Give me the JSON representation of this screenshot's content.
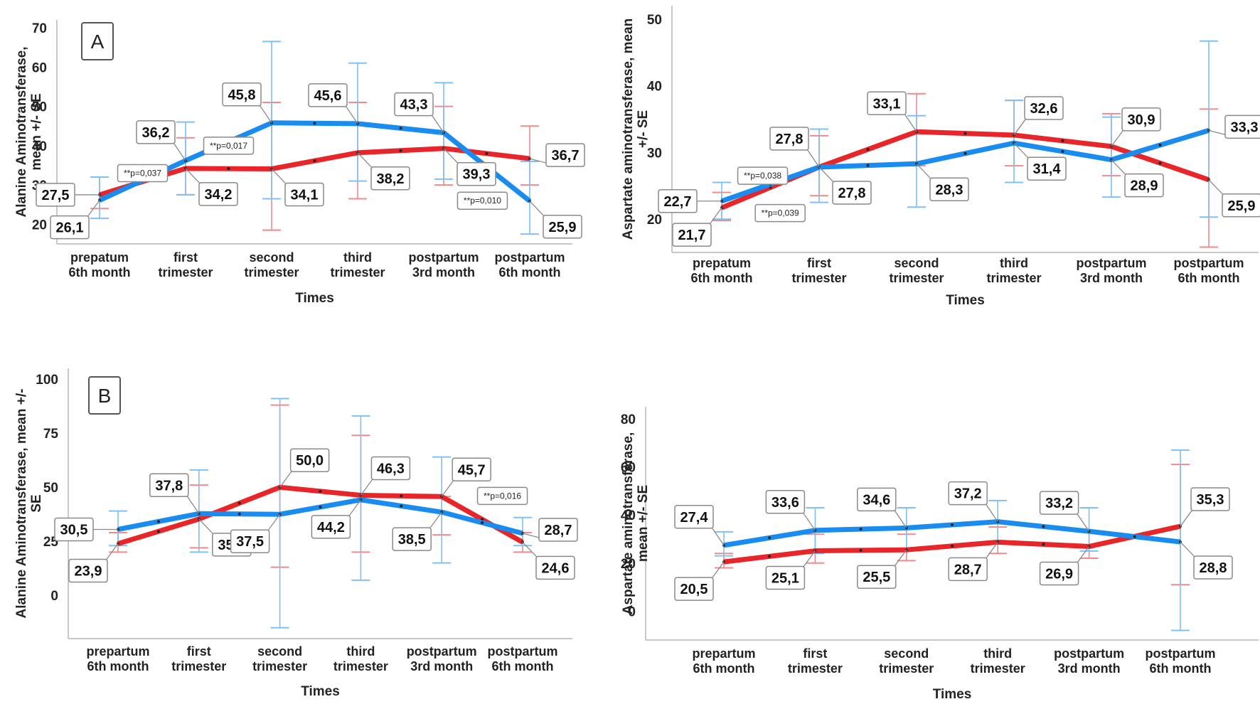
{
  "chart_data": [
    {
      "id": "A-ALT",
      "type": "line",
      "panel_letter": "A",
      "title": "",
      "xlabel": "Times",
      "ylabel": "Alanine Aminotransferase, mean +/- SE",
      "categories": [
        "prepatum\n6th month",
        "first\ntrimester",
        "second\ntrimester",
        "third\ntrimester",
        "postpartum\n3rd month",
        "postpartum\n6th month"
      ],
      "ylim": [
        15,
        72
      ],
      "yticks": [
        20,
        30,
        40,
        50,
        60,
        70
      ],
      "series": [
        {
          "name": "red",
          "color": "#e8262a",
          "values": [
            27.5,
            34.2,
            34.1,
            38.2,
            39.3,
            36.7
          ],
          "err_low": [
            24,
            27.5,
            18.5,
            26.5,
            30,
            30
          ],
          "err_high": [
            32,
            42,
            51,
            51,
            50,
            45
          ]
        },
        {
          "name": "blue",
          "color": "#1a8cf0",
          "values": [
            26.1,
            36.2,
            45.8,
            45.6,
            43.3,
            25.9
          ],
          "err_low": [
            21.5,
            27.5,
            26.5,
            31,
            31.5,
            17.5
          ],
          "err_high": [
            32,
            46,
            66.5,
            61,
            56,
            36
          ]
        }
      ],
      "labels": [
        {
          "text": "27,5",
          "series": 0,
          "index": 0,
          "pos": "left"
        },
        {
          "text": "26,1",
          "series": 1,
          "index": 0,
          "pos": "below-left"
        },
        {
          "text": "36,2",
          "series": 1,
          "index": 1,
          "pos": "above-left"
        },
        {
          "text": "34,2",
          "series": 0,
          "index": 1,
          "pos": "below-right"
        },
        {
          "text": "45,8",
          "series": 1,
          "index": 2,
          "pos": "above-left"
        },
        {
          "text": "34,1",
          "series": 0,
          "index": 2,
          "pos": "below-right"
        },
        {
          "text": "45,6",
          "series": 1,
          "index": 3,
          "pos": "above-left"
        },
        {
          "text": "38,2",
          "series": 0,
          "index": 3,
          "pos": "below-right"
        },
        {
          "text": "43,3",
          "series": 1,
          "index": 4,
          "pos": "above-left"
        },
        {
          "text": "39,3",
          "series": 0,
          "index": 4,
          "pos": "below-right"
        },
        {
          "text": "36,7",
          "series": 0,
          "index": 5,
          "pos": "right"
        },
        {
          "text": "25,9",
          "series": 1,
          "index": 5,
          "pos": "below-right"
        }
      ],
      "annotations": [
        {
          "text": "**p=0,037",
          "x": 0.5,
          "y": 33
        },
        {
          "text": "**p=0,017",
          "x": 1.5,
          "y": 40
        },
        {
          "text": "**p=0,010",
          "x": 4.45,
          "y": 26
        }
      ]
    },
    {
      "id": "A-AST",
      "type": "line",
      "panel_letter": "",
      "title": "",
      "xlabel": "Times",
      "ylabel": "Aspartate aminotransferase, mean +/- SE",
      "categories": [
        "prepatum\n6th month",
        "first\ntrimester",
        "second\ntrimester",
        "third\ntrimester",
        "postpartum\n3rd month",
        "postpartum\n6th month"
      ],
      "ylim": [
        15,
        52
      ],
      "yticks": [
        20,
        30,
        40,
        50
      ],
      "series": [
        {
          "name": "red",
          "color": "#e8262a",
          "values": [
            21.7,
            27.8,
            33.1,
            32.6,
            30.9,
            25.9
          ],
          "err_low": [
            19.8,
            23.5,
            28.0,
            28.0,
            26.5,
            15.8
          ],
          "err_high": [
            24.0,
            32.5,
            38.8,
            37.8,
            35.8,
            36.5
          ]
        },
        {
          "name": "blue",
          "color": "#1a8cf0",
          "values": [
            22.7,
            27.8,
            28.3,
            31.4,
            28.9,
            33.3
          ],
          "err_low": [
            20.0,
            22.5,
            21.8,
            25.5,
            23.3,
            20.3
          ],
          "err_high": [
            25.5,
            33.5,
            35.5,
            37.8,
            35.3,
            46.7
          ]
        }
      ],
      "labels": [
        {
          "text": "22,7",
          "series": 1,
          "index": 0,
          "pos": "left"
        },
        {
          "text": "21,7",
          "series": 0,
          "index": 0,
          "pos": "below-left"
        },
        {
          "text": "27,8",
          "series": 1,
          "index": 1,
          "pos": "above-left"
        },
        {
          "text": "27,8",
          "series": 0,
          "index": 1,
          "pos": "below-right"
        },
        {
          "text": "33,1",
          "series": 0,
          "index": 2,
          "pos": "above-left"
        },
        {
          "text": "28,3",
          "series": 1,
          "index": 2,
          "pos": "below-right"
        },
        {
          "text": "32,6",
          "series": 0,
          "index": 3,
          "pos": "above-right"
        },
        {
          "text": "31,4",
          "series": 1,
          "index": 3,
          "pos": "below-right"
        },
        {
          "text": "30,9",
          "series": 0,
          "index": 4,
          "pos": "above-right"
        },
        {
          "text": "28,9",
          "series": 1,
          "index": 4,
          "pos": "below-right"
        },
        {
          "text": "33,3",
          "series": 1,
          "index": 5,
          "pos": "right"
        },
        {
          "text": "25,9",
          "series": 0,
          "index": 5,
          "pos": "below-right"
        }
      ],
      "annotations": [
        {
          "text": "**p=0,038",
          "x": 0.42,
          "y": 26.5
        },
        {
          "text": "**p=0,039",
          "x": 0.6,
          "y": 20.9
        }
      ]
    },
    {
      "id": "B-ALT",
      "type": "line",
      "panel_letter": "B",
      "title": "",
      "xlabel": "Times",
      "ylabel": "Alanine Aminotransferase, mean +/- SE",
      "categories": [
        "prepartum\n6th month",
        "first\ntrimester",
        "second\ntrimester",
        "third\ntrimester",
        "postpartum\n3rd month",
        "postpartum\n6th month"
      ],
      "ylim": [
        -20,
        105
      ],
      "yticks": [
        0,
        25,
        50,
        75,
        100
      ],
      "series": [
        {
          "name": "red",
          "color": "#e8262a",
          "values": [
            23.9,
            35.3,
            50.0,
            46.3,
            45.7,
            24.6
          ],
          "err_low": [
            20,
            22,
            13,
            20,
            28,
            20
          ],
          "err_high": [
            29,
            51,
            88,
            74,
            45.7,
            29
          ]
        },
        {
          "name": "blue",
          "color": "#1a8cf0",
          "values": [
            30.5,
            37.8,
            37.5,
            44.2,
            38.5,
            28.7
          ],
          "err_low": [
            23,
            20,
            -15,
            7,
            15,
            23
          ],
          "err_high": [
            39,
            58,
            91,
            83,
            64,
            36
          ]
        }
      ],
      "labels": [
        {
          "text": "30,5",
          "series": 1,
          "index": 0,
          "pos": "left"
        },
        {
          "text": "23,9",
          "series": 0,
          "index": 0,
          "pos": "below-left"
        },
        {
          "text": "37,8",
          "series": 1,
          "index": 1,
          "pos": "above-left"
        },
        {
          "text": "35,3",
          "series": 0,
          "index": 1,
          "pos": "below-right"
        },
        {
          "text": "50,0",
          "series": 0,
          "index": 2,
          "pos": "above-right"
        },
        {
          "text": "37,5",
          "series": 1,
          "index": 2,
          "pos": "below-left"
        },
        {
          "text": "46,3",
          "series": 0,
          "index": 3,
          "pos": "above-right"
        },
        {
          "text": "44,2",
          "series": 1,
          "index": 3,
          "pos": "below-left"
        },
        {
          "text": "45,7",
          "series": 0,
          "index": 4,
          "pos": "above-right"
        },
        {
          "text": "38,5",
          "series": 1,
          "index": 4,
          "pos": "below-left"
        },
        {
          "text": "28,7",
          "series": 1,
          "index": 5,
          "pos": "right"
        },
        {
          "text": "24,6",
          "series": 0,
          "index": 5,
          "pos": "below-right"
        }
      ],
      "annotations": [
        {
          "text": "**p=0,016",
          "x": 4.75,
          "y": 46
        }
      ]
    },
    {
      "id": "B-AST",
      "type": "line",
      "panel_letter": "",
      "title": "",
      "xlabel": "Times",
      "ylabel": "Aspartate aminotransferase, mean +/- SE",
      "categories": [
        "prepartum\n6th month",
        "first\ntrimester",
        "second\ntrimester",
        "third\ntrimester",
        "postpartum\n3rd month",
        "postpartum\n6th month"
      ],
      "ylim": [
        -12,
        85
      ],
      "yticks": [
        0,
        20,
        40,
        60,
        80
      ],
      "series": [
        {
          "name": "red",
          "color": "#e8262a",
          "values": [
            20.5,
            25.1,
            25.5,
            28.7,
            26.9,
            35.3
          ],
          "err_low": [
            18,
            20,
            21,
            24,
            22,
            11
          ],
          "err_high": [
            24,
            32,
            32,
            35,
            33,
            61
          ]
        },
        {
          "name": "blue",
          "color": "#1a8cf0",
          "values": [
            27.4,
            33.6,
            34.6,
            37.2,
            33.2,
            28.8
          ],
          "err_low": [
            23,
            24,
            26,
            28,
            25,
            -8
          ],
          "err_high": [
            33,
            43,
            43,
            46,
            43,
            67
          ]
        }
      ],
      "labels": [
        {
          "text": "27,4",
          "series": 1,
          "index": 0,
          "pos": "above-left"
        },
        {
          "text": "20,5",
          "series": 0,
          "index": 0,
          "pos": "below-left"
        },
        {
          "text": "33,6",
          "series": 1,
          "index": 1,
          "pos": "above-left"
        },
        {
          "text": "25,1",
          "series": 0,
          "index": 1,
          "pos": "below-left"
        },
        {
          "text": "34,6",
          "series": 1,
          "index": 2,
          "pos": "above-left"
        },
        {
          "text": "25,5",
          "series": 0,
          "index": 2,
          "pos": "below-left"
        },
        {
          "text": "37,2",
          "series": 1,
          "index": 3,
          "pos": "above-left"
        },
        {
          "text": "28,7",
          "series": 0,
          "index": 3,
          "pos": "below-left"
        },
        {
          "text": "33,2",
          "series": 1,
          "index": 4,
          "pos": "above-left"
        },
        {
          "text": "26,9",
          "series": 0,
          "index": 4,
          "pos": "below-left"
        },
        {
          "text": "35,3",
          "series": 0,
          "index": 5,
          "pos": "above-right"
        },
        {
          "text": "28,8",
          "series": 1,
          "index": 5,
          "pos": "below-right"
        }
      ],
      "annotations": []
    }
  ]
}
